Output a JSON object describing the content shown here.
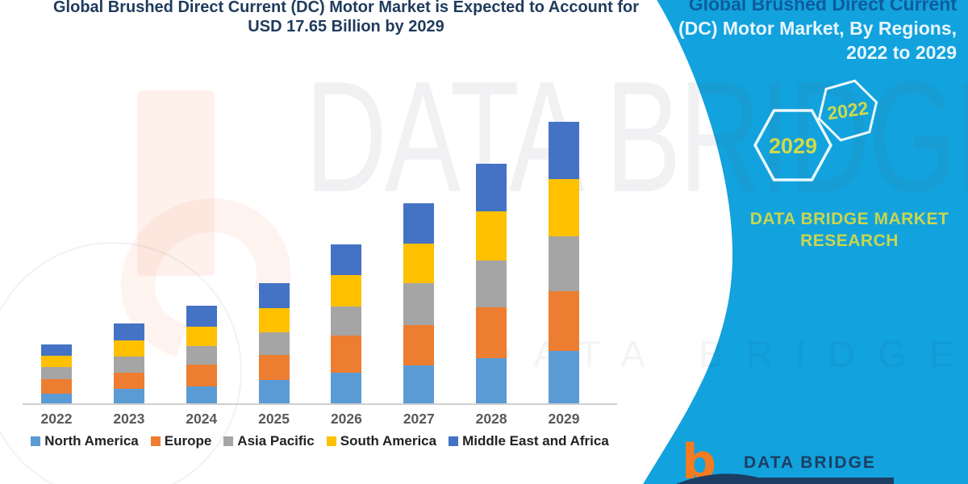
{
  "header": {
    "title_line1": "Global Brushed Direct Current (DC) Motor Market is Expected to Account for",
    "title_line2": "USD 17.65 Billion by 2029"
  },
  "chart_data": {
    "type": "bar",
    "subtype": "stacked",
    "title": "Global Brushed Direct Current (DC) Motor Market is Expected to Account for USD 17.65 Billion by 2029",
    "unit": "USD Billion",
    "xlabel": "",
    "ylabel": "",
    "ylim": [
      0,
      17.65
    ],
    "grid": false,
    "legend_position": "bottom",
    "categories": [
      "2022",
      "2023",
      "2024",
      "2025",
      "2026",
      "2027",
      "2028",
      "2029"
    ],
    "series": [
      {
        "name": "North America",
        "color": "#5B9BD5",
        "values": [
          0.66,
          0.95,
          1.12,
          1.51,
          1.98,
          2.41,
          2.88,
          3.35
        ]
      },
      {
        "name": "Europe",
        "color": "#ED7D31",
        "values": [
          0.9,
          1.0,
          1.34,
          1.54,
          2.3,
          2.52,
          3.15,
          3.69
        ]
      },
      {
        "name": "Asia Pacific",
        "color": "#A5A5A5",
        "values": [
          0.76,
          1.05,
          1.17,
          1.44,
          1.8,
          2.61,
          2.97,
          3.44
        ]
      },
      {
        "name": "South America",
        "color": "#FFC000",
        "values": [
          0.68,
          1.0,
          1.22,
          1.51,
          2.01,
          2.52,
          3.07,
          3.61
        ]
      },
      {
        "name": "Middle East and Africa",
        "color": "#4472C4",
        "values": [
          0.72,
          1.03,
          1.3,
          1.57,
          1.9,
          2.51,
          2.98,
          3.56
        ]
      }
    ],
    "totals_by_year": [
      3.72,
      5.03,
      6.15,
      7.57,
      9.99,
      12.57,
      15.05,
      17.65
    ]
  },
  "side_panel": {
    "panel_color": "#12A2DE",
    "heading_line1": "Global Brushed Direct Current",
    "heading_line2": "(DC) Motor Market, By Regions,",
    "heading_line3": "2022 to 2029",
    "hexagon_left_year": "2029",
    "hexagon_right_year": "2022",
    "brand_line1": "DATA BRIDGE MARKET",
    "brand_line2": "RESEARCH",
    "accent_text_color": "#CDDB4A"
  },
  "watermark": {
    "text": "DATA BRIDGE"
  },
  "footer_logo": {
    "glyph": "b",
    "brand": "DATA BRIDGE"
  }
}
